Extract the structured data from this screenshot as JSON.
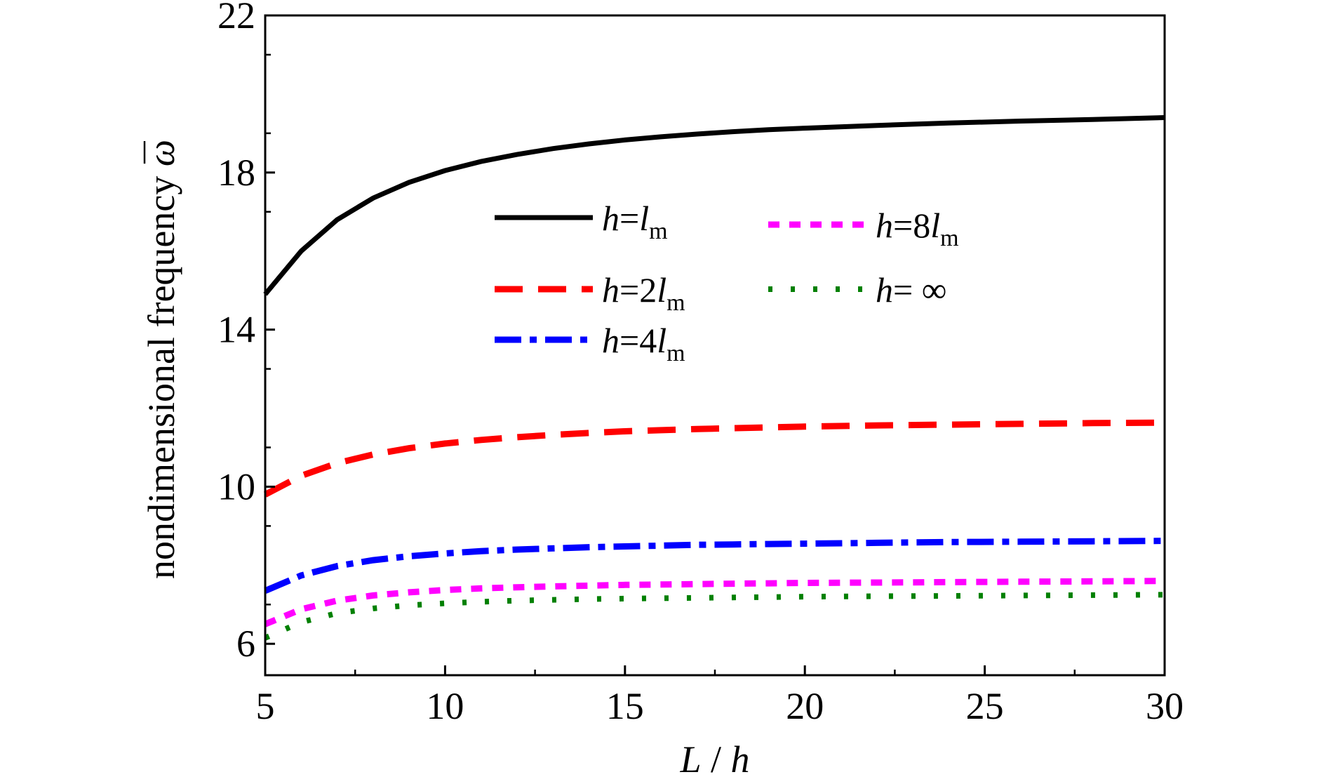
{
  "chart_data": {
    "type": "line",
    "xlabel": {
      "var1": "L",
      "sep": " / ",
      "var2": "h"
    },
    "ylabel": {
      "text": "nondimensional frequency ",
      "symbol": "ω"
    },
    "xlim": [
      5,
      30
    ],
    "ylim": [
      5.2,
      22
    ],
    "x_ticks": [
      5,
      10,
      15,
      20,
      25,
      30
    ],
    "x_tick_labels": [
      "5",
      "10",
      "15",
      "20",
      "25",
      "30"
    ],
    "y_ticks": [
      6,
      10,
      14,
      18,
      22
    ],
    "y_tick_labels": [
      "6",
      "10",
      "14",
      "18",
      "22"
    ],
    "grid": false,
    "legend_position": "upper-center",
    "x": [
      5,
      6,
      7,
      8,
      9,
      10,
      11,
      12,
      13,
      14,
      15,
      16,
      17,
      18,
      19,
      20,
      22,
      24,
      26,
      28,
      30
    ],
    "series": [
      {
        "name": {
          "var": "h",
          "eq": "=",
          "coef": "",
          "l": "l",
          "sub": "m"
        },
        "color": "#000000",
        "style": "solid",
        "values": [
          14.9,
          16.0,
          16.8,
          17.35,
          17.75,
          18.05,
          18.28,
          18.46,
          18.61,
          18.73,
          18.83,
          18.91,
          18.98,
          19.04,
          19.09,
          19.13,
          19.2,
          19.26,
          19.31,
          19.35,
          19.4
        ]
      },
      {
        "name": {
          "var": "h",
          "eq": "=",
          "coef": "2",
          "l": "l",
          "sub": "m"
        },
        "color": "#ff0000",
        "style": "dash",
        "values": [
          9.8,
          10.28,
          10.6,
          10.82,
          10.98,
          11.1,
          11.19,
          11.26,
          11.32,
          11.37,
          11.41,
          11.44,
          11.47,
          11.49,
          11.51,
          11.53,
          11.56,
          11.58,
          11.6,
          11.62,
          11.63
        ]
      },
      {
        "name": {
          "var": "h",
          "eq": "=",
          "coef": "4",
          "l": "l",
          "sub": "m"
        },
        "color": "#0000ff",
        "style": "dashdot",
        "values": [
          7.35,
          7.74,
          7.98,
          8.13,
          8.23,
          8.3,
          8.36,
          8.4,
          8.43,
          8.46,
          8.48,
          8.5,
          8.52,
          8.53,
          8.54,
          8.55,
          8.57,
          8.59,
          8.6,
          8.61,
          8.62
        ]
      },
      {
        "name": {
          "var": "h",
          "eq": "=",
          "coef": "8",
          "l": "l",
          "sub": "m"
        },
        "color": "#ff00ff",
        "style": "short-dash",
        "values": [
          6.5,
          6.88,
          7.1,
          7.23,
          7.31,
          7.37,
          7.41,
          7.44,
          7.46,
          7.48,
          7.5,
          7.51,
          7.52,
          7.53,
          7.54,
          7.55,
          7.56,
          7.57,
          7.58,
          7.59,
          7.6
        ]
      },
      {
        "name": {
          "var": "h",
          "eq": "= ",
          "coef": "∞",
          "l": "",
          "sub": ""
        },
        "color": "#008000",
        "style": "dot",
        "values": [
          6.15,
          6.55,
          6.78,
          6.9,
          6.98,
          7.03,
          7.07,
          7.1,
          7.12,
          7.14,
          7.15,
          7.16,
          7.17,
          7.18,
          7.19,
          7.2,
          7.21,
          7.22,
          7.23,
          7.24,
          7.25
        ]
      }
    ]
  }
}
